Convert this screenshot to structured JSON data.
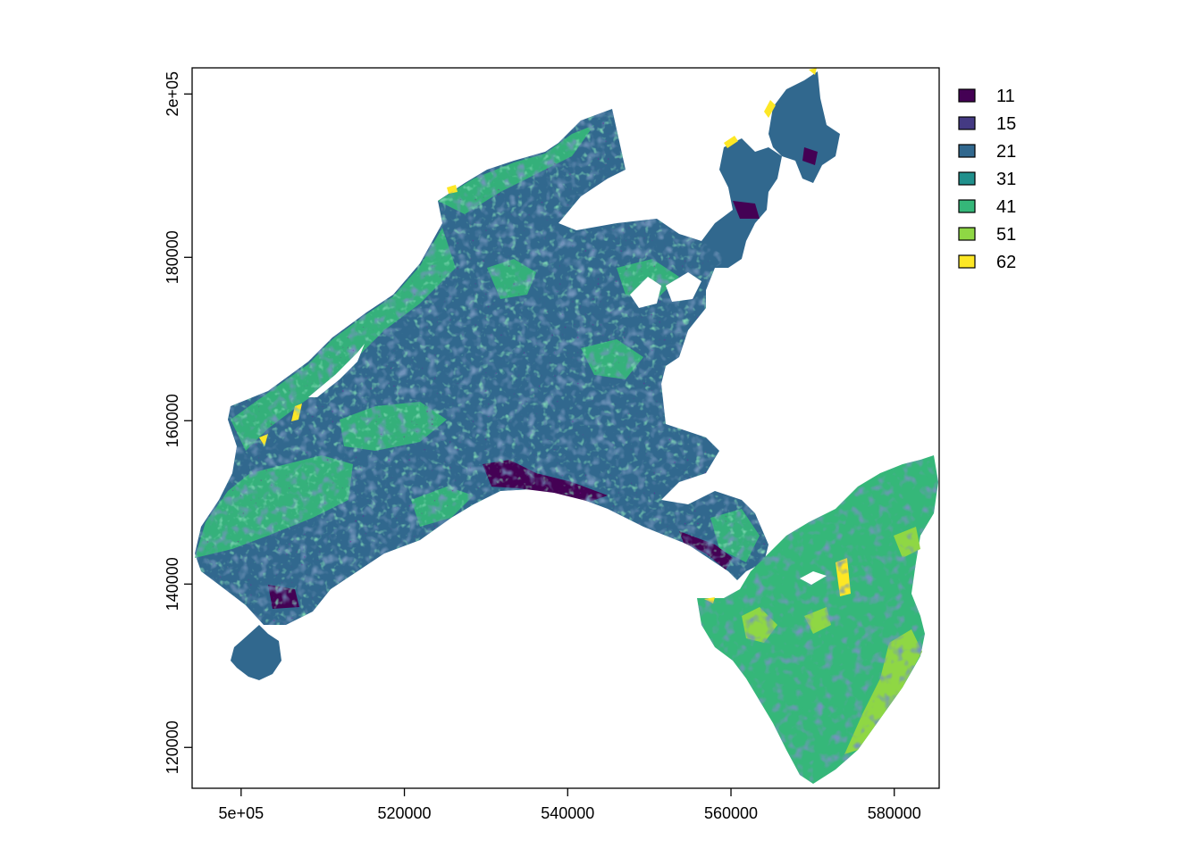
{
  "map": {
    "x_axis": {
      "ticks": [
        {
          "value": 500000,
          "label": "5e+05"
        },
        {
          "value": 520000,
          "label": "520000"
        },
        {
          "value": 540000,
          "label": "540000"
        },
        {
          "value": 560000,
          "label": "560000"
        },
        {
          "value": 580000,
          "label": "580000"
        }
      ],
      "range": [
        494000,
        585500
      ]
    },
    "y_axis": {
      "ticks": [
        {
          "value": 120000,
          "label": "120000"
        },
        {
          "value": 140000,
          "label": "140000"
        },
        {
          "value": 160000,
          "label": "160000"
        },
        {
          "value": 180000,
          "label": "180000"
        },
        {
          "value": 200000,
          "label": "2e+05"
        }
      ],
      "range": [
        115000,
        203200
      ]
    },
    "legend": {
      "placement": "top-right",
      "items": [
        {
          "label": "11",
          "color": "#440154"
        },
        {
          "label": "15",
          "color": "#443A83"
        },
        {
          "label": "21",
          "color": "#31688E"
        },
        {
          "label": "31",
          "color": "#21908C"
        },
        {
          "label": "41",
          "color": "#35B779"
        },
        {
          "label": "51",
          "color": "#8FD744"
        },
        {
          "label": "62",
          "color": "#FDE725"
        }
      ]
    }
  }
}
